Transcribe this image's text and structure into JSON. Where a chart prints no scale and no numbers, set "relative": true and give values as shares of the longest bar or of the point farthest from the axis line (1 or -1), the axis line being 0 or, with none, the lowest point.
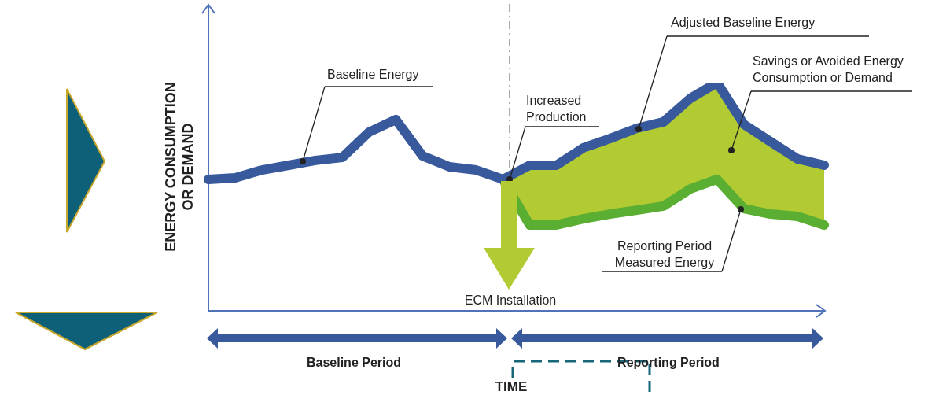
{
  "chart_data": {
    "type": "line",
    "relative": true,
    "marker": "none",
    "grid": false,
    "legend": false,
    "ylabel": "ENERGY CONSUMPTION OR DEMAND",
    "categories": [
      null,
      null,
      null,
      null,
      null,
      null,
      null,
      null,
      null,
      null,
      null,
      null,
      null,
      null,
      null,
      null,
      null,
      null,
      null,
      null,
      null,
      null,
      null,
      null
    ],
    "series": [
      {
        "name": "Baseline Energy",
        "color": "#38599c",
        "values": [
          0.576,
          0.583,
          0.617,
          0.638,
          0.659,
          0.672,
          0.783,
          0.838,
          0.679,
          0.631,
          0.617,
          0.576,
          null,
          null,
          null,
          null,
          null,
          null,
          null,
          null,
          null,
          null,
          null,
          null
        ]
      },
      {
        "name": "Adjusted Baseline Energy",
        "color": "#38599c",
        "values": [
          null,
          null,
          null,
          null,
          null,
          null,
          null,
          null,
          null,
          null,
          null,
          0.576,
          0.638,
          0.638,
          0.714,
          0.755,
          0.8,
          0.828,
          0.931,
          1.0,
          0.817,
          0.741,
          0.666,
          0.638
        ]
      },
      {
        "type": "area",
        "name": "Savings or Avoided Energy Consumption or Demand",
        "color": "#b2cb33",
        "values": [
          null,
          null,
          null,
          null,
          null,
          null,
          null,
          null,
          null,
          null,
          null,
          0.576,
          0.638,
          0.638,
          0.714,
          0.755,
          0.8,
          0.828,
          0.931,
          1.0,
          0.817,
          0.741,
          0.666,
          0.638
        ]
      },
      {
        "name": "Reporting Period Measured Energy",
        "color": "#5aae32",
        "values": [
          null,
          null,
          null,
          null,
          null,
          null,
          null,
          null,
          null,
          null,
          null,
          0.576,
          0.376,
          0.376,
          0.403,
          0.424,
          0.441,
          0.459,
          0.534,
          0.576,
          0.448,
          0.424,
          0.414,
          0.376
        ]
      }
    ],
    "annotations": [
      "Increased Production",
      "ECM Installation",
      "Baseline Period",
      "Reporting Period",
      "TIME"
    ]
  }
}
